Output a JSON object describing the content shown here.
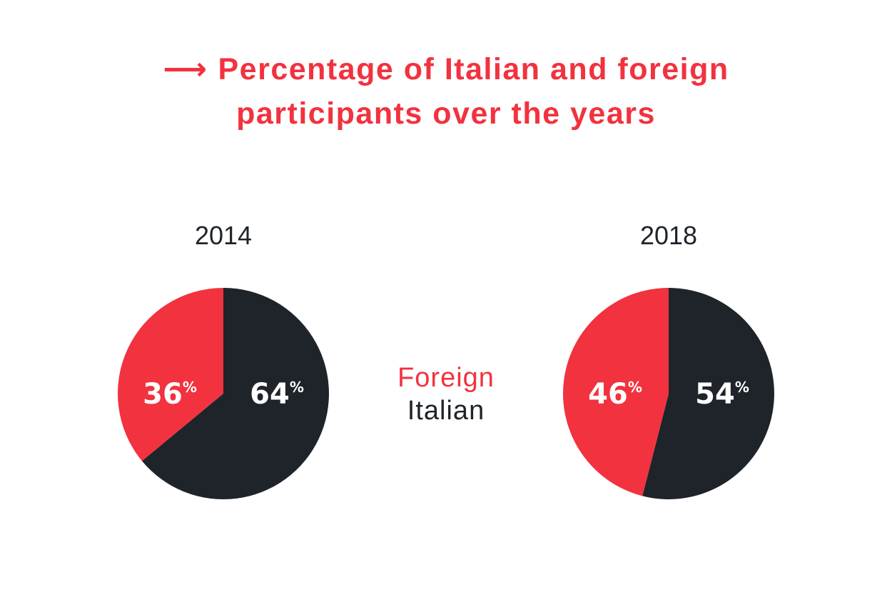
{
  "title": {
    "arrow": "⟶",
    "line1": "Percentage of Italian and foreign",
    "line2": "participants over the years"
  },
  "colors": {
    "foreign": "#f2323f",
    "italian": "#1f242b"
  },
  "chart_data": [
    {
      "type": "pie",
      "title": "2014",
      "slices": [
        {
          "name": "Italian",
          "value": 64,
          "label": "64",
          "unit": "%"
        },
        {
          "name": "Foreign",
          "value": 36,
          "label": "36",
          "unit": "%"
        }
      ]
    },
    {
      "type": "pie",
      "title": "2018",
      "slices": [
        {
          "name": "Italian",
          "value": 54,
          "label": "54",
          "unit": "%"
        },
        {
          "name": "Foreign",
          "value": 46,
          "label": "46",
          "unit": "%"
        }
      ]
    }
  ],
  "legend": {
    "items": [
      "Foreign",
      "Italian"
    ]
  }
}
